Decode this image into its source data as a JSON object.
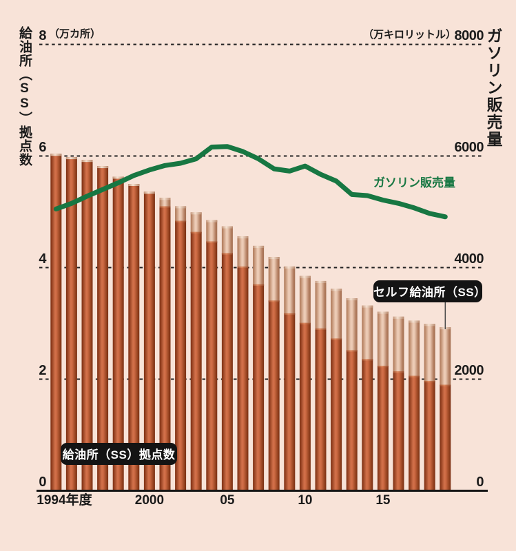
{
  "page": {
    "background": "#f8e3d8"
  },
  "left_axis": {
    "title": "給油所（SS）拠点数",
    "unit": "（万カ所）",
    "ticks": [
      {
        "value": 8,
        "label": "8"
      },
      {
        "value": 6,
        "label": "6"
      },
      {
        "value": 4,
        "label": "4"
      },
      {
        "value": 2,
        "label": "2"
      },
      {
        "value": 0,
        "label": "0"
      }
    ]
  },
  "right_axis": {
    "title": "ガソリン販売量",
    "unit": "（万キロリットル）",
    "ticks": [
      {
        "value": 8000,
        "label": "8000"
      },
      {
        "value": 6000,
        "label": "6000"
      },
      {
        "value": 4000,
        "label": "4000"
      },
      {
        "value": 2000,
        "label": "2000"
      },
      {
        "value": 0,
        "label": "0"
      }
    ]
  },
  "x_axis": {
    "labels": [
      {
        "year": 1994,
        "label": "1994年度",
        "align": "left"
      },
      {
        "year": 2000,
        "label": "2000",
        "align": "center"
      },
      {
        "year": 2005,
        "label": "05",
        "align": "center"
      },
      {
        "year": 2010,
        "label": "10",
        "align": "center"
      },
      {
        "year": 2015,
        "label": "15",
        "align": "center"
      }
    ]
  },
  "annotations": {
    "bars_label": "給油所（SS）拠点数",
    "self_label": "セルフ給油所（SS）",
    "line_label": "ガソリン販売量"
  },
  "colors": {
    "background": "#f8e3d8",
    "bar_dark": "#c9683f",
    "bar_light": "#e9c7b1",
    "line_green": "#177742",
    "text": "#1b1b1b",
    "badge_bg": "#141414",
    "badge_text": "#ffffff"
  },
  "chart_data": {
    "type": "bar",
    "title": "給油所（SS）拠点数とガソリン販売量の推移",
    "grid": "dashed-horizontal",
    "left_axis_range": [
      0,
      8
    ],
    "left_axis_unit": "万カ所",
    "right_axis_range": [
      0,
      8000
    ],
    "right_axis_unit": "万キロリットル",
    "years": [
      1994,
      1995,
      1996,
      1997,
      1998,
      1999,
      2000,
      2001,
      2002,
      2003,
      2004,
      2005,
      2006,
      2007,
      2008,
      2009,
      2010,
      2011,
      2012,
      2013,
      2014,
      2015,
      2016,
      2017,
      2018,
      2019
    ],
    "bars": {
      "name": "給油所（SS）拠点数",
      "unit": "万カ所",
      "total": [
        6.04,
        5.98,
        5.93,
        5.82,
        5.63,
        5.5,
        5.36,
        5.25,
        5.1,
        4.99,
        4.85,
        4.74,
        4.56,
        4.39,
        4.19,
        4.02,
        3.85,
        3.76,
        3.62,
        3.45,
        3.32,
        3.21,
        3.12,
        3.05,
        2.99,
        2.93
      ],
      "self_service": {
        "name": "セルフ給油所（SS）",
        "values": [
          0,
          0,
          0,
          0,
          0,
          0,
          0,
          0.15,
          0.26,
          0.35,
          0.38,
          0.48,
          0.54,
          0.69,
          0.78,
          0.84,
          0.84,
          0.85,
          0.89,
          0.93,
          0.96,
          0.97,
          0.98,
          0.99,
          1.02,
          1.03
        ]
      }
    },
    "line": {
      "name": "ガソリン販売量",
      "unit": "万キロリットル",
      "values": [
        5050,
        5150,
        5280,
        5400,
        5520,
        5650,
        5750,
        5830,
        5870,
        5950,
        6160,
        6170,
        6080,
        5950,
        5770,
        5730,
        5820,
        5670,
        5550,
        5310,
        5290,
        5210,
        5150,
        5070,
        4970,
        4910
      ]
    }
  }
}
